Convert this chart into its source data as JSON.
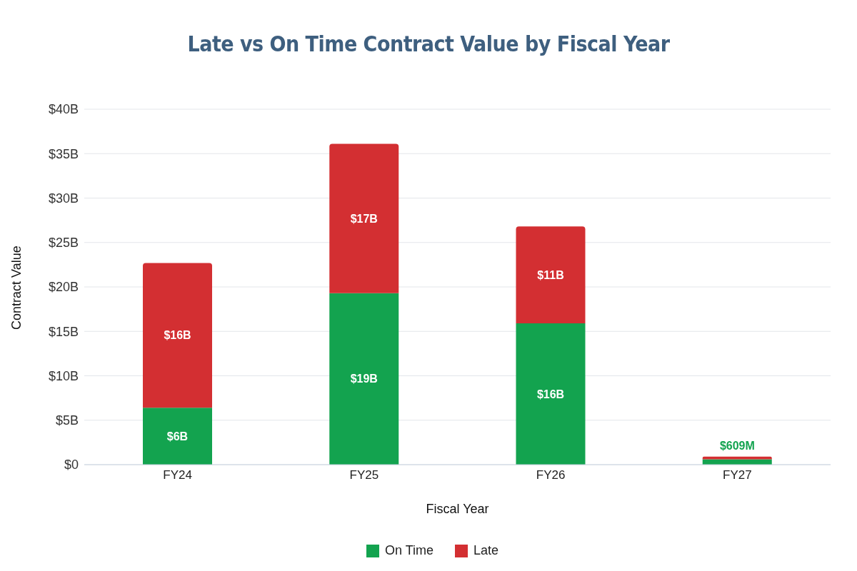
{
  "chart_data": {
    "type": "bar",
    "title": "Late vs On Time Contract Value by Fiscal Year",
    "xlabel": "Fiscal Year",
    "ylabel": "Contract Value",
    "categories": [
      "FY24",
      "FY25",
      "FY26",
      "FY27"
    ],
    "stacked": true,
    "series": [
      {
        "name": "On Time",
        "color": "#13a34f",
        "values": [
          6.4,
          19.3,
          15.9,
          0.6
        ],
        "value_labels": [
          "$6B",
          "$19B",
          "$16B",
          null
        ]
      },
      {
        "name": "Late",
        "color": "#d32f32",
        "values": [
          16.3,
          16.8,
          10.9,
          0.3
        ],
        "value_labels": [
          "$16B",
          "$17B",
          "$11B",
          null
        ]
      }
    ],
    "annotations": [
      {
        "text": "$609M",
        "x": "FY27",
        "y": 0.6
      }
    ],
    "ylim": [
      0,
      40
    ],
    "yticks": [
      {
        "value": 0,
        "label": "$0"
      },
      {
        "value": 5,
        "label": "$5B"
      },
      {
        "value": 10,
        "label": "$10B"
      },
      {
        "value": 15,
        "label": "$15B"
      },
      {
        "value": 20,
        "label": "$20B"
      },
      {
        "value": 25,
        "label": "$25B"
      },
      {
        "value": 30,
        "label": "$30B"
      },
      {
        "value": 35,
        "label": "$35B"
      },
      {
        "value": 40,
        "label": "$40B"
      }
    ],
    "grid": "y",
    "legend": "bottom"
  }
}
